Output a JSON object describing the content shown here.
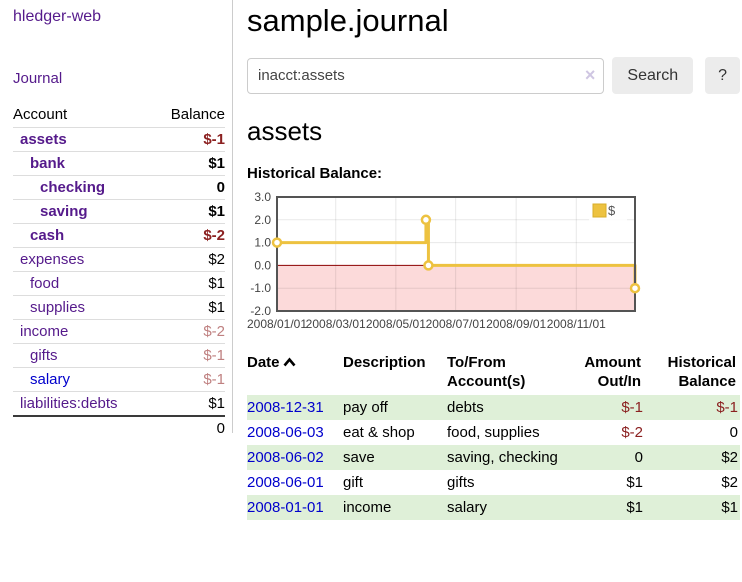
{
  "colors": {
    "link_purple": "#551a8b",
    "link_blue": "#0000cc",
    "negative_red": "#8b2020",
    "faded_negative": "#bf8080",
    "stripe_green": "#dff0d8",
    "accent_gold": "#edc240",
    "negative_region_pink": "#fcdada",
    "zero_line_dark_red": "#8b0000",
    "plot_border_gray": "#545454"
  },
  "icons": {
    "clear_search": "×",
    "sort_ascending": "chevron-up"
  },
  "sidebar": {
    "app_title": "hledger-web",
    "journal_link": "Journal",
    "accounts_table": {
      "headers": {
        "account": "Account",
        "balance": "Balance"
      },
      "rows": [
        {
          "name": "assets",
          "depth": 0,
          "bold": true,
          "link": "purple",
          "value": "$-1",
          "value_style": "neg"
        },
        {
          "name": "bank",
          "depth": 1,
          "bold": true,
          "link": "purple",
          "value": "$1",
          "value_style": "pos"
        },
        {
          "name": "checking",
          "depth": 2,
          "bold": true,
          "link": "purple",
          "value": "0",
          "value_style": "pos"
        },
        {
          "name": "saving",
          "depth": 2,
          "bold": true,
          "link": "purple",
          "value": "$1",
          "value_style": "pos"
        },
        {
          "name": "cash",
          "depth": 1,
          "bold": true,
          "link": "purple",
          "value": "$-2",
          "value_style": "neg"
        },
        {
          "name": "expenses",
          "depth": 0,
          "bold": false,
          "link": "purple",
          "value": "$2",
          "value_style": "pos"
        },
        {
          "name": "food",
          "depth": 1,
          "bold": false,
          "link": "purple",
          "value": "$1",
          "value_style": "pos"
        },
        {
          "name": "supplies",
          "depth": 1,
          "bold": false,
          "link": "purple",
          "value": "$1",
          "value_style": "pos"
        },
        {
          "name": "income",
          "depth": 0,
          "bold": false,
          "link": "purple",
          "value": "$-2",
          "value_style": "faded"
        },
        {
          "name": "gifts",
          "depth": 1,
          "bold": false,
          "link": "purple",
          "value": "$-1",
          "value_style": "faded"
        },
        {
          "name": "salary",
          "depth": 1,
          "bold": false,
          "link": "blue",
          "value": "$-1",
          "value_style": "faded"
        },
        {
          "name": "liabilities:debts",
          "depth": 0,
          "bold": false,
          "link": "purple",
          "value": "$1",
          "value_style": "pos"
        }
      ],
      "total": "0"
    }
  },
  "main": {
    "title": "sample.journal",
    "search": {
      "value": "inacct:assets",
      "search_button": "Search",
      "help_button": "?"
    },
    "account_heading": "assets",
    "chart": {
      "title": "Historical Balance:",
      "type": "step-line",
      "legend_label": "$",
      "legend_position": "top-right",
      "line_color": "#edc240",
      "marker_fill": "#ffffff",
      "negative_region_color": "#fcdada",
      "zero_line_color": "#8b0000",
      "border_color": "#545454",
      "y_min": -2,
      "y_max": 3,
      "y_ticks": [
        {
          "label": "3.0",
          "v": 3
        },
        {
          "label": "2.0",
          "v": 2
        },
        {
          "label": "1.0",
          "v": 1
        },
        {
          "label": "0.0",
          "v": 0
        },
        {
          "label": "-1.0",
          "v": -1
        },
        {
          "label": "-2.0",
          "v": -2
        }
      ],
      "x_ticks": [
        {
          "label": "2008/01/01",
          "f": 0
        },
        {
          "label": "2008/03/01",
          "f": 0.164
        },
        {
          "label": "2008/05/01",
          "f": 0.332
        },
        {
          "label": "2008/07/01",
          "f": 0.499
        },
        {
          "label": "2008/09/01",
          "f": 0.668
        },
        {
          "label": "2008/11/01",
          "f": 0.836
        }
      ],
      "points": [
        {
          "f": 0.0,
          "v": 1
        },
        {
          "f": 0.416,
          "v": 2
        },
        {
          "f": 0.423,
          "v": 0
        },
        {
          "f": 1.0,
          "v": -1
        }
      ]
    },
    "register": {
      "headers": {
        "date": "Date",
        "description": "Description",
        "accounts": "To/From\nAccount(s)",
        "amount": "Amount\nOut/In",
        "balance": "Historical\nBalance"
      },
      "rows": [
        {
          "date": "2008-12-31",
          "description": "pay off",
          "accounts": "debts",
          "amount": "$-1",
          "balance": "$-1"
        },
        {
          "date": "2008-06-03",
          "description": "eat & shop",
          "accounts": "food, supplies",
          "amount": "$-2",
          "balance": "0"
        },
        {
          "date": "2008-06-02",
          "description": "save",
          "accounts": "saving, checking",
          "amount": "0",
          "balance": "$2"
        },
        {
          "date": "2008-06-01",
          "description": "gift",
          "accounts": "gifts",
          "amount": "$1",
          "balance": "$2"
        },
        {
          "date": "2008-01-01",
          "description": "income",
          "accounts": "salary",
          "amount": "$1",
          "balance": "$1"
        }
      ]
    }
  }
}
